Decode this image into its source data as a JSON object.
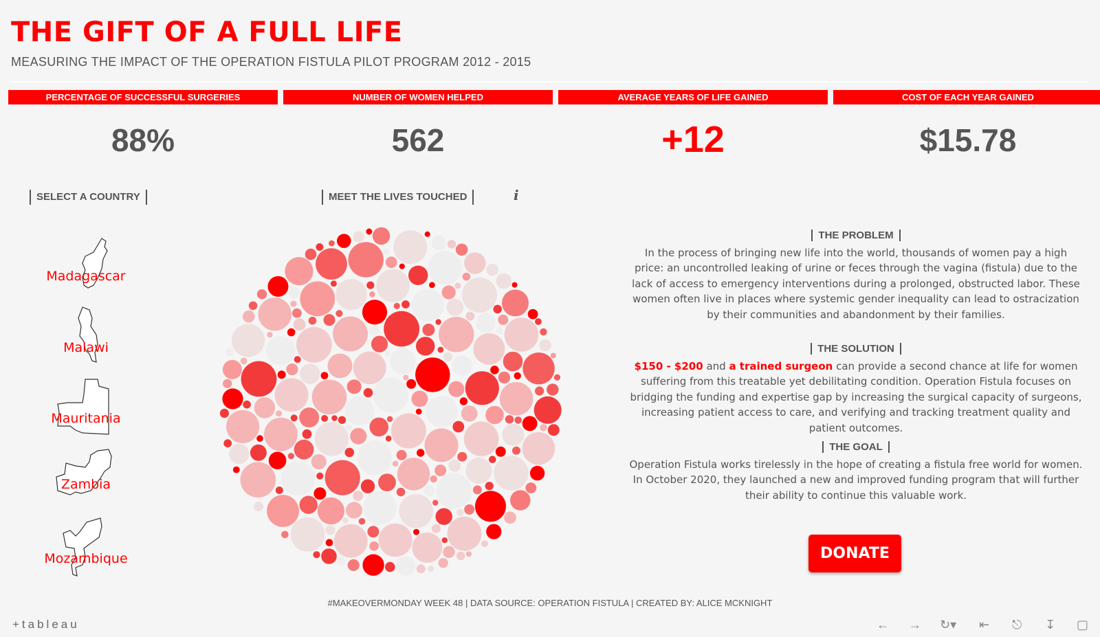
{
  "header": {
    "title": "THE GIFT OF A FULL LIFE",
    "subtitle": "MEASURING THE IMPACT OF THE OPERATION FISTULA PILOT PROGRAM 2012 - 2015"
  },
  "kpis": [
    {
      "label": "PERCENTAGE OF SUCCESSFUL SURGERIES",
      "value": "88%"
    },
    {
      "label": "NUMBER OF WOMEN HELPED",
      "value": "562"
    },
    {
      "label": "AVERAGE YEARS OF LIFE GAINED",
      "value": "+12"
    },
    {
      "label": "COST OF EACH YEAR GAINED",
      "value": "$15.78"
    }
  ],
  "country_selector": {
    "label": "SELECT A COUNTRY",
    "countries": [
      "Madagascar",
      "Malawi",
      "Mauritania",
      "Zambia",
      "Mozambique"
    ]
  },
  "lives": {
    "label": "MEET THE LIVES TOUCHED",
    "info_icon": "info-icon"
  },
  "problem": {
    "heading": "THE PROBLEM",
    "text": "In the process of bringing new life into the world, thousands of women pay a high price: an uncontrolled leaking of urine or feces through the vagina (fistula) due to the lack of access to emergency interventions during a prolonged, obstructed labor. These women often live in places where systemic gender inequality can lead to ostracization by their communities and abandonment by their families."
  },
  "solution": {
    "heading": "THE SOLUTION",
    "cost": "$150 - $200",
    "and": " and ",
    "surgeon": "a trained surgeon",
    "text": " can provide a second chance at life for women suffering from this treatable yet debilitating condition. Operation Fistula focuses on bridging the funding and expertise gap by increasing the surgical capacity of surgeons, increasing patient access to care, and verifying and tracking treatment quality and patient outcomes."
  },
  "goal": {
    "heading": "THE GOAL",
    "text": "Operation Fistula works tirelessly in the hope of creating a fistula free world for women. In October 2020, they launched a new and improved funding program that will further their ability to continue this valuable work."
  },
  "donate_label": "DONATE",
  "footer": "#MAKEOVERMONDAY WEEK 48 | DATA SOURCE: OPERATION FISTULA | CREATED BY: ALICE MCKNIGHT",
  "tableau": {
    "logo": "+tableau",
    "controls": [
      "undo-icon",
      "redo-icon",
      "revert-icon",
      "first-icon",
      "share-icon",
      "download-icon",
      "fullscreen-icon"
    ]
  },
  "colors": {
    "accent": "#ff0000",
    "text": "#555555",
    "background": "#f5f5f5"
  }
}
